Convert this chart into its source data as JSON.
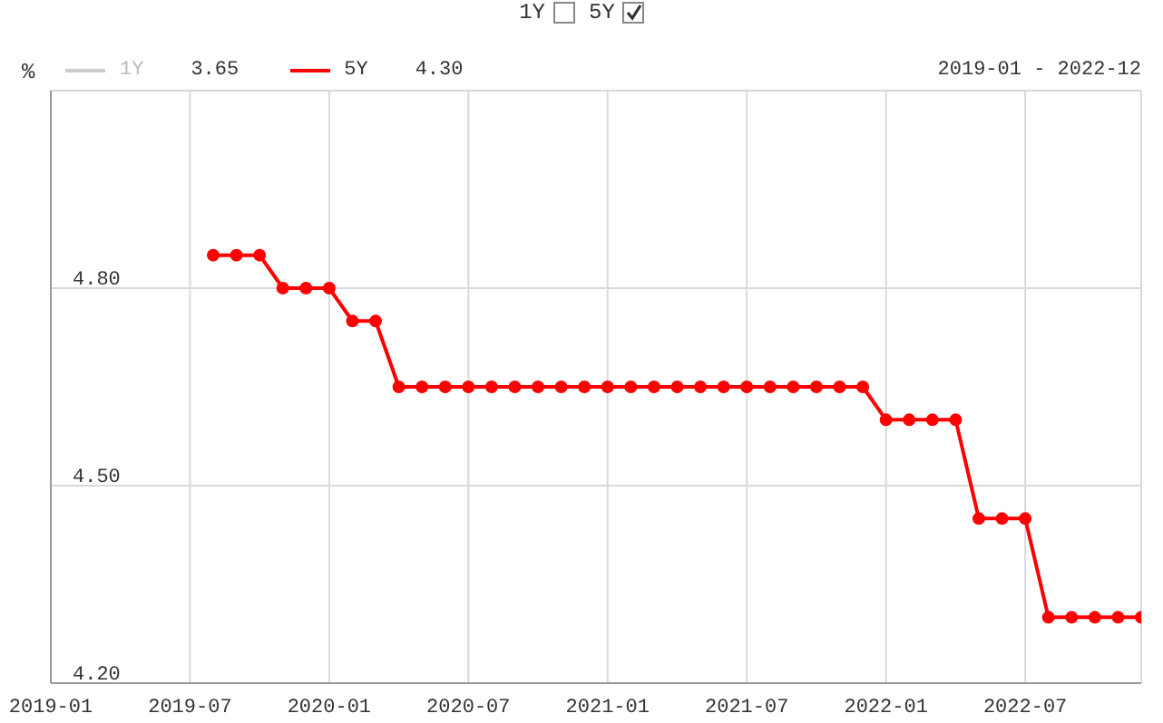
{
  "chart_data": {
    "type": "line",
    "ylabel": "%",
    "legend": "top left",
    "grid": true,
    "marker": "circle",
    "line_style": "solid",
    "x": [
      "2019-08",
      "2019-09",
      "2019-10",
      "2019-11",
      "2019-12",
      "2020-01",
      "2020-02",
      "2020-03",
      "2020-04",
      "2020-05",
      "2020-06",
      "2020-07",
      "2020-08",
      "2020-09",
      "2020-10",
      "2020-11",
      "2020-12",
      "2021-01",
      "2021-02",
      "2021-03",
      "2021-04",
      "2021-05",
      "2021-06",
      "2021-07",
      "2021-08",
      "2021-09",
      "2021-10",
      "2021-11",
      "2021-12",
      "2022-01",
      "2022-02",
      "2022-03",
      "2022-04",
      "2022-05",
      "2022-06",
      "2022-07",
      "2022-08",
      "2022-09",
      "2022-10",
      "2022-11",
      "2022-12"
    ],
    "series": [
      {
        "name": "1Y",
        "color": "#cccccc",
        "values": [
          null,
          null,
          null,
          null,
          null,
          null,
          null,
          null,
          null,
          null,
          null,
          null,
          null,
          null,
          null,
          null,
          null,
          null,
          null,
          null,
          null,
          null,
          null,
          null,
          null,
          null,
          null,
          null,
          null,
          null,
          null,
          null,
          null,
          null,
          null,
          null,
          null,
          null,
          null,
          null,
          null
        ]
      },
      {
        "name": "5Y",
        "color": "#ff0000",
        "values": [
          4.85,
          4.85,
          4.85,
          4.8,
          4.8,
          4.8,
          4.75,
          4.75,
          4.65,
          4.65,
          4.65,
          4.65,
          4.65,
          4.65,
          4.65,
          4.65,
          4.65,
          4.65,
          4.65,
          4.65,
          4.65,
          4.65,
          4.65,
          4.65,
          4.65,
          4.65,
          4.65,
          4.65,
          4.65,
          4.6,
          4.6,
          4.6,
          4.6,
          4.45,
          4.45,
          4.45,
          4.3,
          4.3,
          4.3,
          4.3,
          4.3
        ]
      }
    ],
    "xlim": [
      "2019-01",
      "2022-12"
    ],
    "xticks": [
      "2019-01",
      "2019-07",
      "2020-01",
      "2020-07",
      "2021-01",
      "2021-07",
      "2022-01",
      "2022-07"
    ],
    "ylim": [
      4.2,
      5.1
    ],
    "yticks": [
      {
        "value": 4.2,
        "label": "4.20"
      },
      {
        "value": 4.5,
        "label": "4.50"
      },
      {
        "value": 4.8,
        "label": "4.80"
      }
    ],
    "annotations": [
      "3.65",
      "4.30",
      "2019-01 - 2022-12"
    ]
  }
}
